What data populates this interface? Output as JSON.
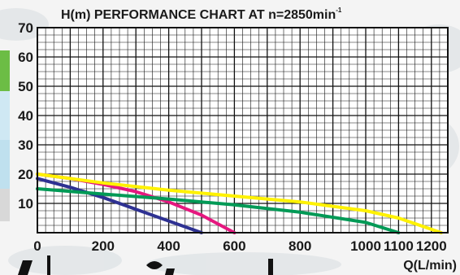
{
  "chart_data": {
    "type": "line",
    "title": "H(m) PERFORMANCE CHART AT n=2850min",
    "title_superscript": "-1",
    "xlabel": "Q(L/min)",
    "ylabel": "",
    "xlim": [
      0,
      1250
    ],
    "ylim": [
      0,
      70
    ],
    "x_ticks": [
      0,
      200,
      400,
      600,
      800,
      1000,
      1100,
      1200
    ],
    "y_ticks": [
      10,
      20,
      30,
      40,
      50,
      60,
      70
    ],
    "grid": true,
    "legend": "none",
    "series": [
      {
        "color": "#2e3192",
        "points": [
          [
            0,
            18.5
          ],
          [
            100,
            15.5
          ],
          [
            200,
            12
          ],
          [
            300,
            8
          ],
          [
            400,
            4
          ],
          [
            500,
            0
          ]
        ]
      },
      {
        "color": "#e6177f",
        "points": [
          [
            0,
            20
          ],
          [
            100,
            18.5
          ],
          [
            200,
            16.5
          ],
          [
            300,
            14
          ],
          [
            400,
            10.5
          ],
          [
            500,
            6
          ],
          [
            600,
            0
          ]
        ]
      },
      {
        "color": "#009a56",
        "points": [
          [
            0,
            15
          ],
          [
            200,
            13.2
          ],
          [
            400,
            11.5
          ],
          [
            600,
            9.5
          ],
          [
            800,
            7
          ],
          [
            1000,
            3.5
          ],
          [
            1100,
            0
          ]
        ]
      },
      {
        "color": "#fff200",
        "points": [
          [
            0,
            20
          ],
          [
            200,
            17
          ],
          [
            400,
            14.5
          ],
          [
            600,
            12.5
          ],
          [
            800,
            10.5
          ],
          [
            1000,
            7.5
          ],
          [
            1100,
            5
          ],
          [
            1230,
            0
          ]
        ]
      }
    ]
  }
}
